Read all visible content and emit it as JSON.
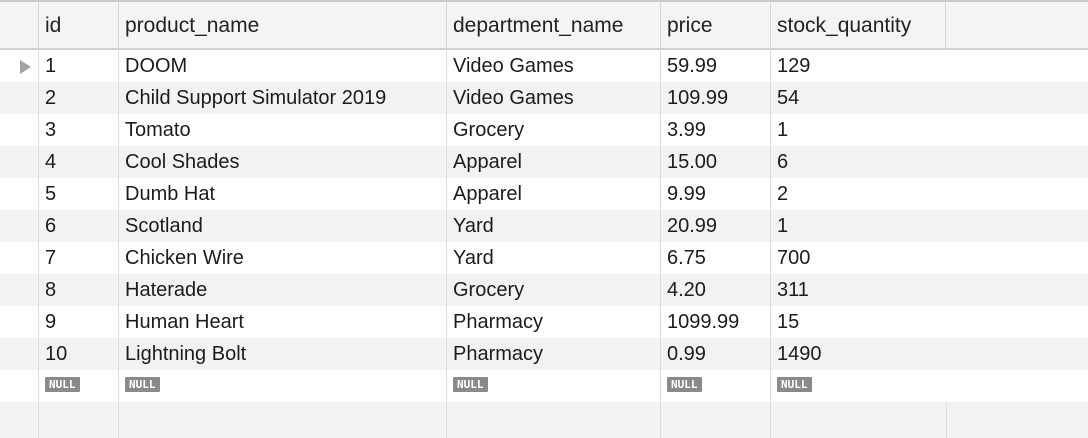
{
  "table": {
    "columns": [
      "id",
      "product_name",
      "department_name",
      "price",
      "stock_quantity"
    ],
    "rows": [
      [
        "1",
        "DOOM",
        "Video Games",
        "59.99",
        "129"
      ],
      [
        "2",
        "Child Support Simulator 2019",
        "Video Games",
        "109.99",
        "54"
      ],
      [
        "3",
        "Tomato",
        "Grocery",
        "3.99",
        "1"
      ],
      [
        "4",
        "Cool Shades",
        "Apparel",
        "15.00",
        "6"
      ],
      [
        "5",
        "Dumb Hat",
        "Apparel",
        "9.99",
        "2"
      ],
      [
        "6",
        "Scotland",
        "Yard",
        "20.99",
        "1"
      ],
      [
        "7",
        "Chicken Wire",
        "Yard",
        "6.75",
        "700"
      ],
      [
        "8",
        "Haterade",
        "Grocery",
        "4.20",
        "311"
      ],
      [
        "9",
        "Human Heart",
        "Pharmacy",
        "1099.99",
        "15"
      ],
      [
        "10",
        "Lightning Bolt",
        "Pharmacy",
        "0.99",
        "1490"
      ]
    ],
    "null_label": "NULL",
    "current_row_index": 0
  }
}
